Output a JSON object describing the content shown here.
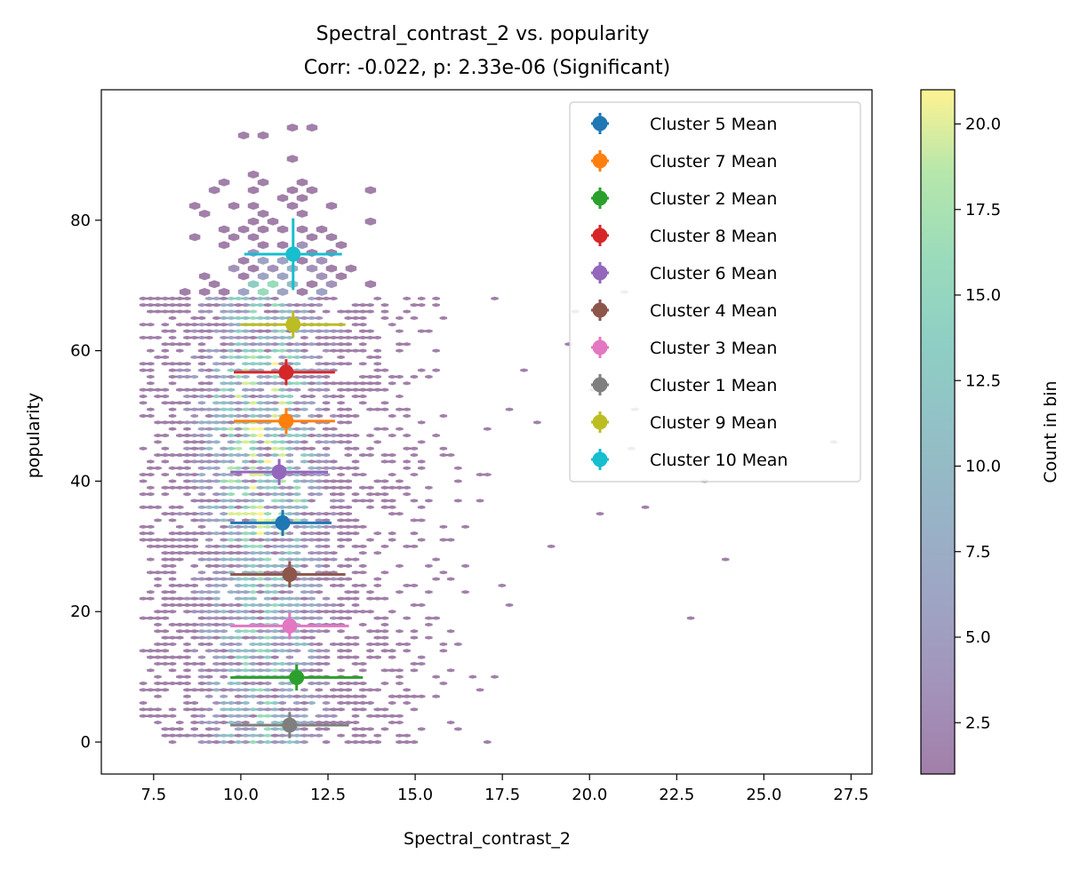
{
  "chart_data": {
    "type": "scatter",
    "title": "Spectral_contrast_2 vs. popularity",
    "subtitle": "Corr: -0.022, p: 2.33e-06 (Significant)",
    "xlabel": "Spectral_contrast_2",
    "ylabel": "popularity",
    "xlim": [
      6.0,
      28.1
    ],
    "ylim": [
      -4.9,
      100.0
    ],
    "x_ticks": [
      "7.5",
      "10.0",
      "12.5",
      "15.0",
      "17.5",
      "20.0",
      "22.5",
      "25.0",
      "27.5"
    ],
    "y_ticks": [
      "0",
      "20",
      "40",
      "60",
      "80"
    ],
    "grid": false,
    "legend_position": "upper-right",
    "background": "hexbin density of individual tracks",
    "colorbar": {
      "label": "Count in bin",
      "range": [
        1,
        21
      ],
      "ticks": [
        "2.5",
        "5.0",
        "7.5",
        "10.0",
        "12.5",
        "15.0",
        "17.5",
        "20.0"
      ],
      "colormap": "viridis",
      "alpha": 0.5
    },
    "series": [
      {
        "name": "Cluster 5 Mean",
        "color": "#1f77b4",
        "x": 11.2,
        "y": 33.6,
        "xerr": [
          1.5,
          1.4
        ],
        "yerr": 2.0
      },
      {
        "name": "Cluster 7 Mean",
        "color": "#ff7f0e",
        "x": 11.3,
        "y": 49.2,
        "xerr": [
          1.5,
          1.4
        ],
        "yerr": 2.0
      },
      {
        "name": "Cluster 2 Mean",
        "color": "#2ca02c",
        "x": 11.6,
        "y": 9.9,
        "xerr": [
          1.9,
          1.9
        ],
        "yerr": 2.0
      },
      {
        "name": "Cluster 8 Mean",
        "color": "#d62728",
        "x": 11.3,
        "y": 56.7,
        "xerr": [
          1.5,
          1.4
        ],
        "yerr": 2.0
      },
      {
        "name": "Cluster 6 Mean",
        "color": "#9467bd",
        "x": 11.1,
        "y": 41.4,
        "xerr": [
          1.4,
          1.4
        ],
        "yerr": 2.0
      },
      {
        "name": "Cluster 4 Mean",
        "color": "#8c564b",
        "x": 11.4,
        "y": 25.7,
        "xerr": [
          1.7,
          1.6
        ],
        "yerr": 2.0
      },
      {
        "name": "Cluster 3 Mean",
        "color": "#e377c2",
        "x": 11.4,
        "y": 17.8,
        "xerr": [
          1.7,
          1.7
        ],
        "yerr": 2.0
      },
      {
        "name": "Cluster 1 Mean",
        "color": "#7f7f7f",
        "x": 11.4,
        "y": 2.6,
        "xerr": [
          1.7,
          1.7
        ],
        "yerr": 2.0
      },
      {
        "name": "Cluster 9 Mean",
        "color": "#bcbd22",
        "x": 11.5,
        "y": 64.0,
        "xerr": [
          1.5,
          1.5
        ],
        "yerr": 2.0
      },
      {
        "name": "Cluster 10 Mean",
        "color": "#17becf",
        "x": 11.5,
        "y": 74.8,
        "xerr": [
          1.4,
          1.4
        ],
        "yerr": 5.5
      }
    ]
  }
}
